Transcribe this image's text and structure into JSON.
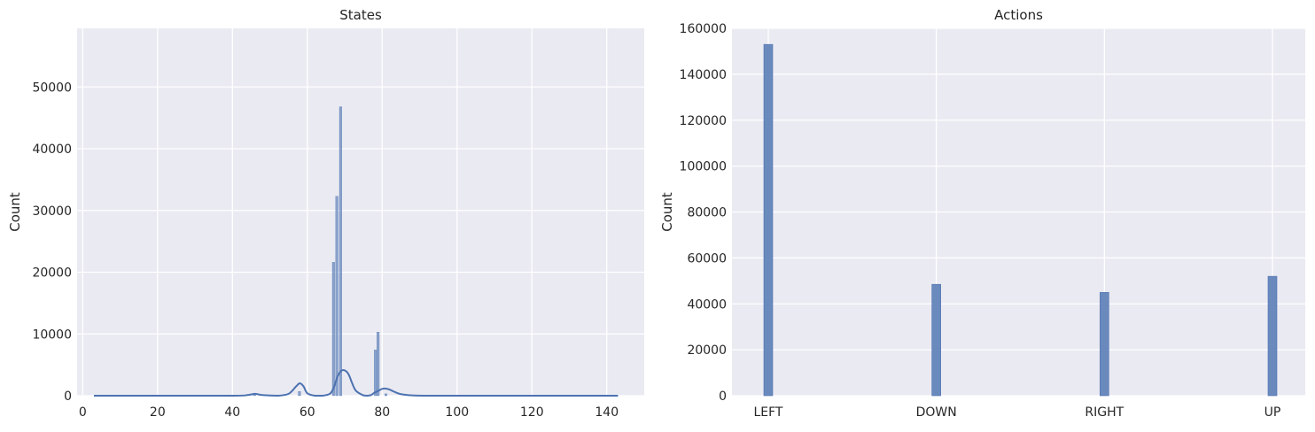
{
  "chart_data": [
    {
      "type": "histogram",
      "title": "States",
      "xlabel": "",
      "ylabel": "Count",
      "xlim": [
        -1.5,
        150
      ],
      "ylim": [
        0,
        59500
      ],
      "x_ticks": [
        0,
        20,
        40,
        60,
        80,
        100,
        120,
        140
      ],
      "y_ticks": [
        0,
        10000,
        20000,
        30000,
        40000,
        50000
      ],
      "grid": true,
      "bars": [
        {
          "x": 67.0,
          "count": 21600
        },
        {
          "x": 67.9,
          "count": 32300
        },
        {
          "x": 68.9,
          "count": 46800
        },
        {
          "x": 78.2,
          "count": 7400
        },
        {
          "x": 78.9,
          "count": 10300
        },
        {
          "x": 57.9,
          "count": 700
        },
        {
          "x": 45.9,
          "count": 250
        },
        {
          "x": 81.0,
          "count": 300
        },
        {
          "x": 10.0,
          "count": 120
        },
        {
          "x": 103.0,
          "count": 120
        },
        {
          "x": 106.0,
          "count": 100
        }
      ],
      "kde": {
        "x": [
          3,
          20,
          40,
          44,
          46,
          48,
          52,
          55,
          57,
          58,
          59,
          60,
          62,
          64,
          66,
          67,
          68,
          69,
          70,
          71,
          72,
          73,
          75,
          76,
          77,
          78,
          79,
          80,
          81,
          82,
          83,
          85,
          88,
          92,
          100,
          120,
          143
        ],
        "y": [
          0,
          0,
          0,
          100,
          300,
          100,
          0,
          300,
          1500,
          2000,
          1500,
          400,
          0,
          0,
          300,
          1200,
          3000,
          4000,
          4100,
          3500,
          2000,
          800,
          50,
          0,
          100,
          500,
          800,
          1100,
          1150,
          1000,
          700,
          250,
          50,
          0,
          0,
          0,
          0
        ]
      }
    },
    {
      "type": "bar",
      "title": "Actions",
      "xlabel": "",
      "ylabel": "Count",
      "categories": [
        "LEFT",
        "DOWN",
        "RIGHT",
        "UP"
      ],
      "values": [
        153000,
        48500,
        45000,
        52000
      ],
      "ylim": [
        0,
        160000
      ],
      "y_ticks": [
        0,
        20000,
        40000,
        60000,
        80000,
        100000,
        120000,
        140000,
        160000
      ],
      "grid": true
    }
  ],
  "colors": {
    "plot_background": "#eaeaf2",
    "grid": "#ffffff",
    "bar_fill": "#6a89bd",
    "bar_edge": "#4c72b0",
    "kde_line": "#4c72b0"
  }
}
